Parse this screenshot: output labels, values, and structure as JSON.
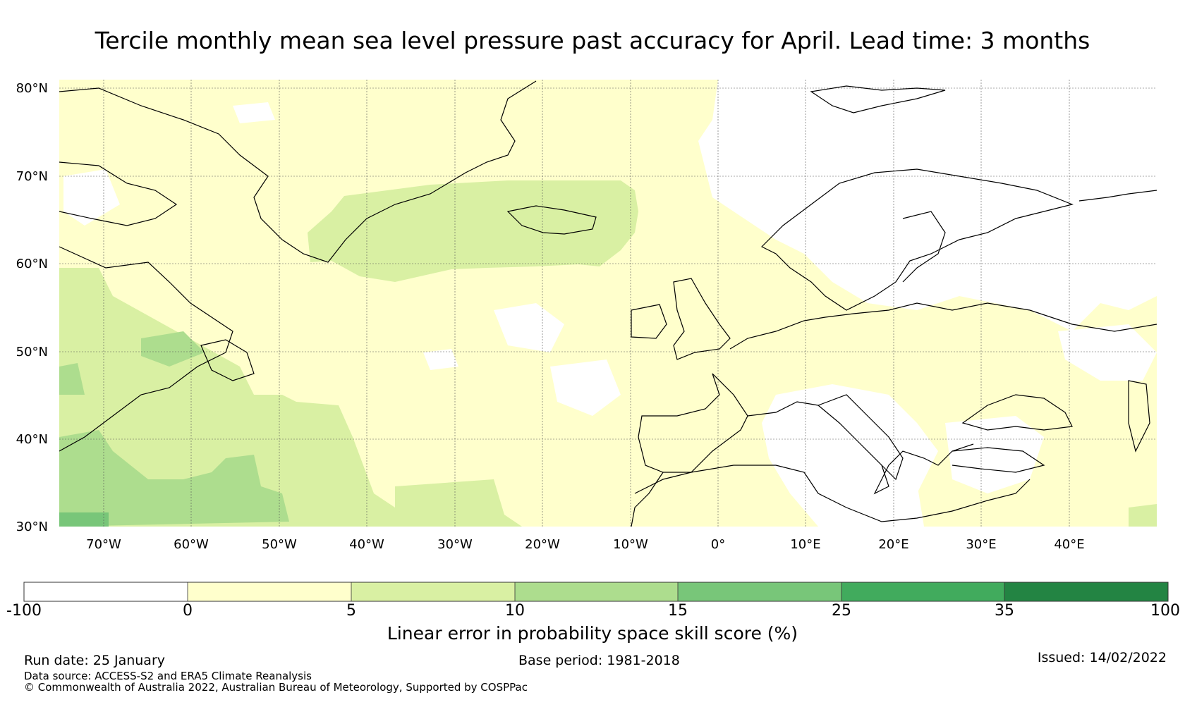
{
  "title": "Tercile monthly mean sea level pressure past accuracy for April. Lead time: 3 months",
  "map": {
    "lat_labels": [
      "80°N",
      "70°N",
      "60°N",
      "50°N",
      "40°N",
      "30°N"
    ],
    "lat_values": [
      80,
      70,
      60,
      50,
      40,
      30
    ],
    "lon_labels": [
      "70°W",
      "60°W",
      "50°W",
      "40°W",
      "30°W",
      "20°W",
      "10°W",
      "0°",
      "10°E",
      "20°E",
      "30°E",
      "40°E"
    ],
    "lon_values": [
      -70,
      -60,
      -50,
      -40,
      -30,
      -20,
      -10,
      0,
      10,
      20,
      30,
      40
    ],
    "extent": {
      "lon_min": -75,
      "lon_max": 50,
      "lat_min": 30,
      "lat_max": 81
    }
  },
  "colorbar": {
    "boundaries": [
      "-100",
      "0",
      "5",
      "10",
      "15",
      "25",
      "35",
      "100"
    ],
    "colors": [
      "#ffffff",
      "#ffffcc",
      "#d9f0a3",
      "#addd8e",
      "#78c679",
      "#41ab5d",
      "#238443"
    ],
    "label": "Linear error in probability space skill score (%)"
  },
  "footer": {
    "run_date": "Run date: 25 January",
    "base_period": "Base period: 1981-2018",
    "issued": "Issued: 14/02/2022",
    "data_source": "Data source: ACCESS-S2 and ERA5 Climate Reanalysis",
    "copyright": "© Commonwealth of Australia 2022, Australian Bureau of Meteorology, Supported by COSPPac"
  }
}
